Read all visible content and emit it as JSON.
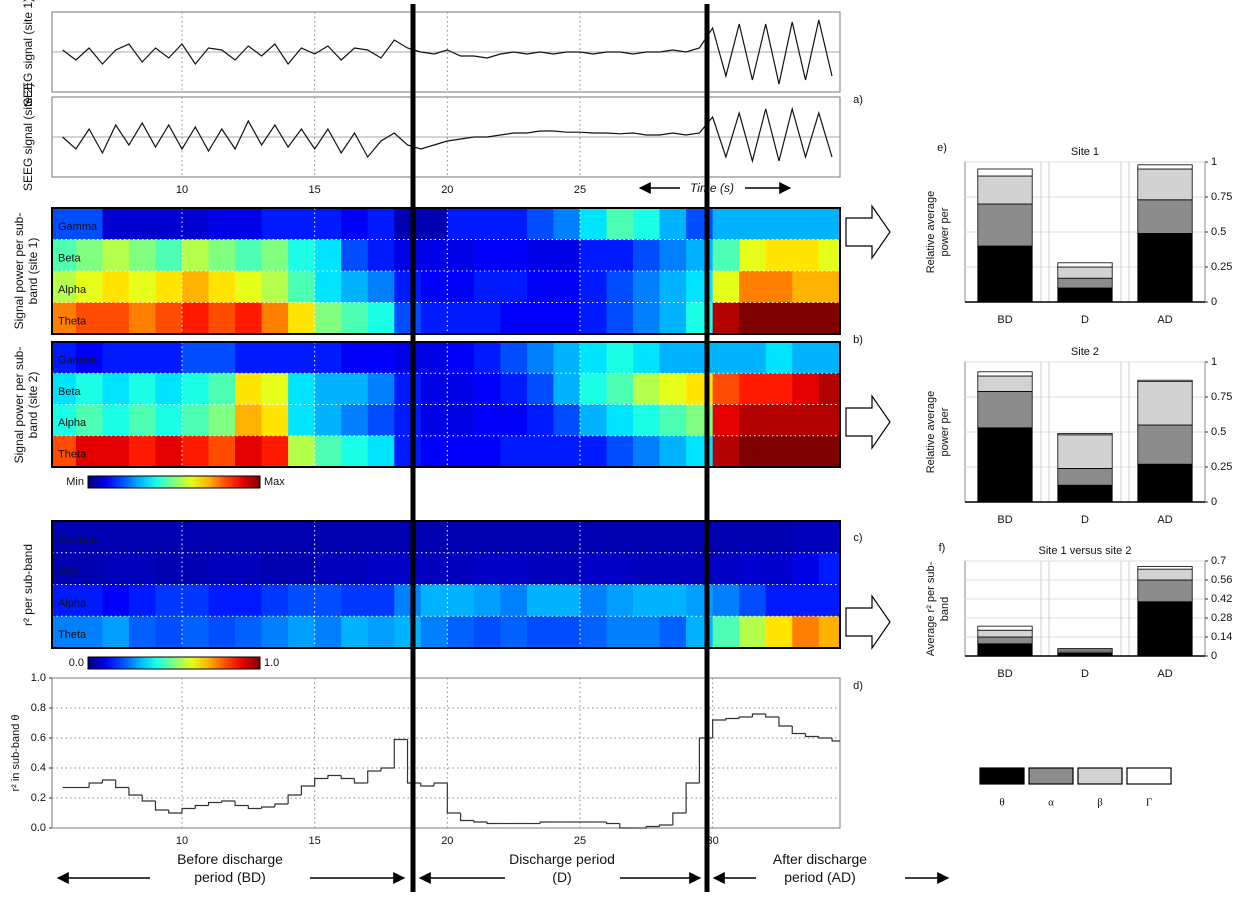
{
  "annotations": {
    "panels": [
      "a)",
      "b)",
      "c)",
      "d)",
      "e)",
      "f)"
    ],
    "periods": [
      "Before discharge period (BD)",
      "Discharge period (D)",
      "After discharge period (AD)"
    ]
  },
  "chart_data": [
    {
      "type": "line",
      "ylabel": "SEEG signal (site 1)",
      "xlim": [
        5.1,
        34.8
      ],
      "ylim": [
        -1,
        1
      ],
      "x": [
        5.5,
        6,
        6.5,
        7,
        7.5,
        8,
        8.5,
        9,
        9.5,
        10,
        10.5,
        11,
        11.5,
        12,
        12.5,
        13,
        13.5,
        14,
        14.5,
        15,
        15.5,
        16,
        16.5,
        17,
        17.5,
        18,
        18.5,
        19,
        19.5,
        20,
        20.5,
        21,
        21.5,
        22,
        22.5,
        23,
        23.5,
        24,
        24.5,
        25,
        25.5,
        26,
        26.5,
        27,
        27.5,
        28,
        28.5,
        29,
        29.5,
        30,
        30.5,
        31,
        31.5,
        32,
        32.5,
        33,
        33.5,
        34,
        34.5
      ],
      "values": [
        0.05,
        -0.2,
        0.1,
        -0.3,
        0.05,
        0.2,
        -0.25,
        0.1,
        -0.15,
        0.2,
        -0.3,
        0.1,
        0.05,
        -0.2,
        0.15,
        -0.1,
        0.2,
        -0.3,
        0.1,
        -0.05,
        0.15,
        -0.2,
        0.1,
        0.05,
        -0.15,
        0.3,
        0.1,
        0,
        -0.05,
        0.05,
        -0.1,
        -0.1,
        -0.15,
        -0.05,
        0,
        -0.05,
        0,
        -0.05,
        0,
        0,
        -0.05,
        0,
        0,
        -0.05,
        0,
        0,
        0.05,
        0,
        0.1,
        0.6,
        -0.6,
        0.7,
        -0.7,
        0.7,
        -0.8,
        0.75,
        -0.7,
        0.8,
        -0.6
      ]
    },
    {
      "type": "line",
      "ylabel": "SEEG signal (site 2)",
      "xlabel": "Time (s)",
      "xlim": [
        5.1,
        34.8
      ],
      "ylim": [
        -1,
        1
      ],
      "xticks": [
        10,
        15,
        20,
        25
      ],
      "x": [
        5.5,
        6,
        6.5,
        7,
        7.5,
        8,
        8.5,
        9,
        9.5,
        10,
        10.5,
        11,
        11.5,
        12,
        12.5,
        13,
        13.5,
        14,
        14.5,
        15,
        15.5,
        16,
        16.5,
        17,
        17.5,
        18,
        18.5,
        19,
        19.5,
        20,
        20.5,
        21,
        21.5,
        22,
        22.5,
        23,
        23.5,
        24,
        24.5,
        25,
        25.5,
        26,
        26.5,
        27,
        27.5,
        28,
        28.5,
        29,
        29.5,
        30,
        30.5,
        31,
        31.5,
        32,
        32.5,
        33,
        33.5,
        34,
        34.5
      ],
      "values": [
        0,
        -0.3,
        0.2,
        -0.4,
        0.3,
        -0.2,
        0.35,
        -0.25,
        0.3,
        -0.3,
        0.25,
        -0.35,
        0.2,
        -0.3,
        0.4,
        -0.2,
        0.3,
        -0.25,
        0.2,
        -0.3,
        0.2,
        -0.4,
        0.1,
        -0.5,
        -0.1,
        0.1,
        -0.2,
        -0.3,
        -0.2,
        -0.1,
        -0.05,
        0,
        0,
        0.05,
        0.1,
        0.1,
        0.15,
        0.15,
        0.12,
        0.12,
        0.1,
        0.1,
        0.08,
        0.1,
        0.05,
        0.05,
        0.1,
        0.05,
        0.1,
        0.5,
        -0.5,
        0.6,
        -0.6,
        0.7,
        -0.6,
        0.7,
        -0.5,
        0.6,
        -0.5
      ]
    },
    {
      "type": "heatmap",
      "ylabel": "Signal power per sub-band (site 1)",
      "xlim": [
        5.1,
        34.8
      ],
      "zlim": [
        0,
        1
      ],
      "x": [
        5.5,
        6.5,
        7.5,
        8.5,
        9.5,
        10.5,
        11.5,
        12.5,
        13.5,
        14.5,
        15.5,
        16.5,
        17.5,
        18.5,
        19.5,
        20.5,
        21.5,
        22.5,
        23.5,
        24.5,
        25.5,
        26.5,
        27.5,
        28.5,
        29.5,
        30.5,
        31.5,
        32.5,
        33.5,
        34.5
      ],
      "rows": [
        "Gamma",
        "Beta",
        "Alpha",
        "Theta"
      ],
      "values": [
        [
          0.2,
          0.2,
          0.08,
          0.08,
          0.08,
          0.08,
          0.1,
          0.1,
          0.15,
          0.15,
          0.15,
          0.12,
          0.15,
          0.05,
          0.05,
          0.15,
          0.15,
          0.15,
          0.2,
          0.25,
          0.35,
          0.45,
          0.4,
          0.3,
          0.2,
          0.3,
          0.3,
          0.3,
          0.3,
          0.3
        ],
        [
          0.45,
          0.5,
          0.55,
          0.5,
          0.45,
          0.55,
          0.5,
          0.45,
          0.5,
          0.4,
          0.35,
          0.2,
          0.15,
          0.1,
          0.1,
          0.1,
          0.12,
          0.12,
          0.1,
          0.1,
          0.15,
          0.15,
          0.2,
          0.25,
          0.3,
          0.45,
          0.6,
          0.65,
          0.65,
          0.6
        ],
        [
          0.55,
          0.6,
          0.65,
          0.6,
          0.65,
          0.7,
          0.65,
          0.6,
          0.55,
          0.45,
          0.35,
          0.3,
          0.25,
          0.15,
          0.12,
          0.12,
          0.15,
          0.15,
          0.12,
          0.12,
          0.15,
          0.2,
          0.25,
          0.3,
          0.35,
          0.6,
          0.75,
          0.75,
          0.7,
          0.7
        ],
        [
          0.75,
          0.8,
          0.8,
          0.75,
          0.8,
          0.85,
          0.8,
          0.85,
          0.75,
          0.65,
          0.5,
          0.45,
          0.4,
          0.2,
          0.15,
          0.15,
          0.15,
          0.12,
          0.12,
          0.12,
          0.15,
          0.2,
          0.25,
          0.3,
          0.4,
          0.95,
          1,
          1,
          1,
          1
        ]
      ]
    },
    {
      "type": "heatmap",
      "ylabel": "Signal power per sub-band (site 2)",
      "xlim": [
        5.1,
        34.8
      ],
      "zlim": [
        0,
        1
      ],
      "colorbar_labels": [
        "Min",
        "Max"
      ],
      "x": [
        5.5,
        6.5,
        7.5,
        8.5,
        9.5,
        10.5,
        11.5,
        12.5,
        13.5,
        14.5,
        15.5,
        16.5,
        17.5,
        18.5,
        19.5,
        20.5,
        21.5,
        22.5,
        23.5,
        24.5,
        25.5,
        26.5,
        27.5,
        28.5,
        29.5,
        30.5,
        31.5,
        32.5,
        33.5,
        34.5
      ],
      "rows": [
        "Gamma",
        "Beta",
        "Alpha",
        "Theta"
      ],
      "values": [
        [
          0.15,
          0.12,
          0.15,
          0.15,
          0.15,
          0.2,
          0.2,
          0.15,
          0.15,
          0.15,
          0.15,
          0.12,
          0.12,
          0.1,
          0.1,
          0.12,
          0.15,
          0.2,
          0.25,
          0.3,
          0.35,
          0.4,
          0.35,
          0.3,
          0.3,
          0.3,
          0.3,
          0.35,
          0.3,
          0.3
        ],
        [
          0.35,
          0.4,
          0.35,
          0.4,
          0.35,
          0.4,
          0.45,
          0.65,
          0.6,
          0.35,
          0.3,
          0.3,
          0.25,
          0.15,
          0.1,
          0.1,
          0.12,
          0.15,
          0.2,
          0.3,
          0.4,
          0.45,
          0.55,
          0.6,
          0.65,
          0.8,
          0.85,
          0.85,
          0.9,
          0.95
        ],
        [
          0.4,
          0.45,
          0.4,
          0.45,
          0.4,
          0.45,
          0.5,
          0.7,
          0.65,
          0.35,
          0.3,
          0.25,
          0.2,
          0.15,
          0.1,
          0.1,
          0.12,
          0.12,
          0.15,
          0.2,
          0.3,
          0.35,
          0.4,
          0.45,
          0.5,
          0.9,
          0.95,
          0.95,
          0.95,
          0.95
        ],
        [
          0.8,
          0.9,
          0.9,
          0.85,
          0.9,
          0.85,
          0.8,
          0.9,
          0.85,
          0.55,
          0.45,
          0.4,
          0.35,
          0.15,
          0.12,
          0.12,
          0.12,
          0.15,
          0.15,
          0.15,
          0.15,
          0.2,
          0.25,
          0.3,
          0.35,
          0.95,
          1,
          1,
          1,
          1
        ]
      ]
    },
    {
      "type": "heatmap",
      "ylabel": "r² per sub-band",
      "xlim": [
        5.1,
        34.8
      ],
      "zlim": [
        0,
        1
      ],
      "zticks": [
        {
          "value": 0,
          "label": "0.0"
        },
        {
          "value": 1,
          "label": "1.0"
        }
      ],
      "x": [
        5.5,
        6.5,
        7.5,
        8.5,
        9.5,
        10.5,
        11.5,
        12.5,
        13.5,
        14.5,
        15.5,
        16.5,
        17.5,
        18.5,
        19.5,
        20.5,
        21.5,
        22.5,
        23.5,
        24.5,
        25.5,
        26.5,
        27.5,
        28.5,
        29.5,
        30.5,
        31.5,
        32.5,
        33.5,
        34.5
      ],
      "rows": [
        "Gamma",
        "Beta",
        "Alpha",
        "Theta"
      ],
      "values": [
        [
          0.05,
          0.05,
          0.05,
          0.05,
          0.05,
          0.05,
          0.05,
          0.05,
          0.05,
          0.05,
          0.05,
          0.05,
          0.05,
          0.05,
          0.05,
          0.05,
          0.05,
          0.05,
          0.05,
          0.05,
          0.05,
          0.05,
          0.05,
          0.05,
          0.05,
          0.05,
          0.05,
          0.05,
          0.06,
          0.06
        ],
        [
          0.05,
          0.05,
          0.06,
          0.06,
          0.05,
          0.05,
          0.06,
          0.06,
          0.05,
          0.05,
          0.06,
          0.06,
          0.07,
          0.07,
          0.06,
          0.06,
          0.07,
          0.07,
          0.06,
          0.06,
          0.07,
          0.07,
          0.06,
          0.06,
          0.06,
          0.07,
          0.08,
          0.08,
          0.1,
          0.15
        ],
        [
          0.15,
          0.15,
          0.12,
          0.15,
          0.18,
          0.18,
          0.15,
          0.15,
          0.18,
          0.2,
          0.2,
          0.18,
          0.18,
          0.25,
          0.3,
          0.3,
          0.28,
          0.25,
          0.3,
          0.3,
          0.25,
          0.28,
          0.3,
          0.3,
          0.28,
          0.25,
          0.2,
          0.15,
          0.15,
          0.15
        ],
        [
          0.25,
          0.25,
          0.28,
          0.22,
          0.2,
          0.22,
          0.2,
          0.22,
          0.25,
          0.28,
          0.25,
          0.3,
          0.28,
          0.3,
          0.25,
          0.22,
          0.2,
          0.22,
          0.2,
          0.2,
          0.22,
          0.25,
          0.25,
          0.22,
          0.3,
          0.45,
          0.55,
          0.65,
          0.75,
          0.7
        ]
      ]
    },
    {
      "type": "line",
      "step": true,
      "ylabel": "r² in  sub-band θ",
      "xlim": [
        5.1,
        34.8
      ],
      "ylim": [
        0,
        1
      ],
      "grid": true,
      "xticks": [
        10,
        15,
        20,
        25,
        30
      ],
      "yticks": [
        {
          "value": 0,
          "label": "0.0"
        },
        {
          "value": 0.2,
          "label": "0.2"
        },
        {
          "value": 0.4,
          "label": "0.4"
        },
        {
          "value": 0.6,
          "label": "0.6"
        },
        {
          "value": 0.8,
          "label": "0.8"
        },
        {
          "value": 1,
          "label": "1.0"
        }
      ],
      "x": [
        5.5,
        6,
        6.5,
        7,
        7.5,
        8,
        8.5,
        9,
        9.5,
        10,
        10.5,
        11,
        11.5,
        12,
        12.5,
        13,
        13.5,
        14,
        14.5,
        15,
        15.5,
        16,
        16.5,
        17,
        17.5,
        18,
        18.5,
        19,
        19.5,
        20,
        20.5,
        21,
        21.5,
        22,
        22.5,
        23,
        23.5,
        24,
        24.5,
        25,
        25.5,
        26,
        26.5,
        27,
        27.5,
        28,
        28.5,
        29,
        29.5,
        30,
        30.5,
        31,
        31.5,
        32,
        32.5,
        33,
        33.5,
        34,
        34.5
      ],
      "values": [
        0.27,
        0.27,
        0.3,
        0.32,
        0.27,
        0.22,
        0.18,
        0.12,
        0.1,
        0.13,
        0.15,
        0.17,
        0.18,
        0.15,
        0.13,
        0.14,
        0.16,
        0.22,
        0.28,
        0.33,
        0.35,
        0.33,
        0.3,
        0.38,
        0.4,
        0.59,
        0.3,
        0.28,
        0.3,
        0.1,
        0.05,
        0.04,
        0.03,
        0.03,
        0.03,
        0.03,
        0.04,
        0.04,
        0.04,
        0.04,
        0.04,
        0.03,
        0,
        0,
        0.01,
        0.02,
        0.1,
        0.3,
        0.6,
        0.72,
        0.73,
        0.74,
        0.76,
        0.74,
        0.68,
        0.63,
        0.61,
        0.6,
        0.58
      ]
    },
    {
      "type": "bar",
      "stacked": true,
      "title": "Site 1",
      "ylabel": "Relative average power per",
      "categories": [
        "BD",
        "D",
        "AD"
      ],
      "ylim": [
        0,
        1
      ],
      "yticks": [
        0,
        0.25,
        0.5,
        0.75,
        1
      ],
      "series": [
        {
          "color": "#000000",
          "values": [
            0.4,
            0.1,
            0.49
          ]
        },
        {
          "color": "#8c8c8c",
          "values": [
            0.3,
            0.07,
            0.24
          ]
        },
        {
          "color": "#d2d2d2",
          "values": [
            0.2,
            0.08,
            0.22
          ]
        },
        {
          "color": "#ffffff",
          "values": [
            0.05,
            0.03,
            0.03
          ]
        }
      ]
    },
    {
      "type": "bar",
      "stacked": true,
      "title": "Site 2",
      "ylabel": "Relative average power per",
      "categories": [
        "BD",
        "D",
        "AD"
      ],
      "ylim": [
        0,
        1
      ],
      "yticks": [
        0,
        0.25,
        0.5,
        0.75,
        1
      ],
      "series": [
        {
          "color": "#000000",
          "values": [
            0.53,
            0.12,
            0.27
          ]
        },
        {
          "color": "#8c8c8c",
          "values": [
            0.26,
            0.12,
            0.28
          ]
        },
        {
          "color": "#d2d2d2",
          "values": [
            0.11,
            0.24,
            0.31
          ]
        },
        {
          "color": "#ffffff",
          "values": [
            0.03,
            0.01,
            0.01
          ]
        }
      ]
    },
    {
      "type": "bar",
      "stacked": true,
      "title": "Site 1 versus site 2",
      "ylabel": "Average r² per sub-band",
      "categories": [
        "BD",
        "D",
        "AD"
      ],
      "ylim": [
        0,
        0.7
      ],
      "yticks": [
        0,
        0.14,
        0.28,
        0.42,
        0.56,
        0.7
      ],
      "series": [
        {
          "name": "θ",
          "color": "#000000",
          "values": [
            0.09,
            0.02,
            0.4
          ]
        },
        {
          "name": "α",
          "color": "#8c8c8c",
          "values": [
            0.05,
            0.01,
            0.16
          ]
        },
        {
          "name": "β",
          "color": "#d2d2d2",
          "values": [
            0.05,
            0.015,
            0.08
          ]
        },
        {
          "name": "Γ",
          "color": "#ffffff",
          "values": [
            0.03,
            0.01,
            0.02
          ]
        }
      ]
    }
  ]
}
